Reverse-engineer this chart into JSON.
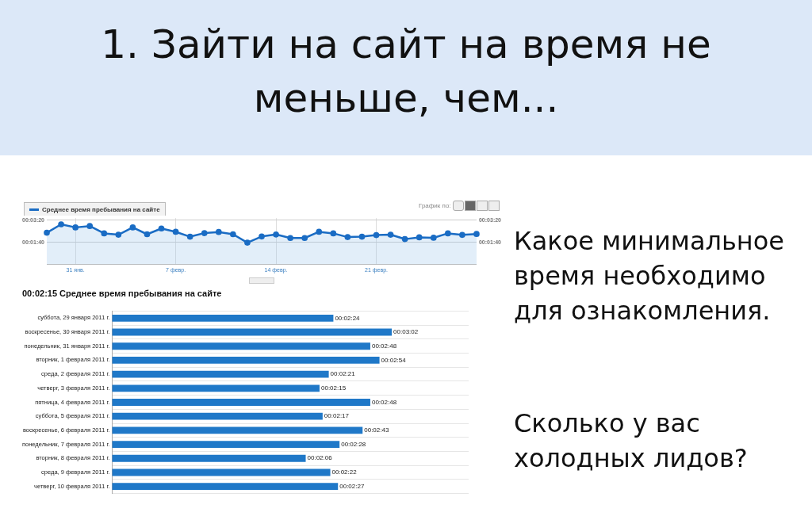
{
  "chart_data": [
    {
      "type": "area",
      "title": "1. Зайти на сайт на время не меньше, чем...",
      "x": [
        "2011-01-29",
        "2011-01-30",
        "2011-01-31",
        "2011-02-01",
        "2011-02-02",
        "2011-02-03",
        "2011-02-04",
        "2011-02-05",
        "2011-02-06",
        "2011-02-07",
        "2011-02-08",
        "2011-02-09",
        "2011-02-10",
        "2011-02-11",
        "2011-02-12",
        "2011-02-13",
        "2011-02-14",
        "2011-02-15",
        "2011-02-16",
        "2011-02-17",
        "2011-02-18",
        "2011-02-19",
        "2011-02-20",
        "2011-02-21",
        "2011-02-22",
        "2011-02-23",
        "2011-02-24",
        "2011-02-25",
        "2011-02-26",
        "2011-02-27",
        "2011-02-28"
      ],
      "series": [
        {
          "name": "Среднее время пребывания на сайте",
          "color": "#1a6cc4",
          "values": [
            144,
            182,
            168,
            174,
            141,
            135,
            168,
            137,
            163,
            148,
            126,
            142,
            147,
            137,
            99,
            127,
            136,
            120,
            120,
            148,
            141,
            124,
            126,
            133,
            135,
            115,
            123,
            121,
            141,
            134,
            138
          ]
        }
      ],
      "xlim": [
        "2011-01-29",
        "2011-02-28"
      ],
      "xticks": [
        {
          "value": "2011-01-31",
          "label": "31 янв."
        },
        {
          "value": "2011-02-07",
          "label": "7 февр."
        },
        {
          "value": "2011-02-14",
          "label": "14 февр."
        },
        {
          "value": "2011-02-21",
          "label": "21 февр."
        }
      ],
      "ylim": [
        0,
        210
      ],
      "yticks": [
        {
          "value": 100,
          "label": "00:01:40"
        },
        {
          "value": 200,
          "label": "00:03:20"
        }
      ],
      "y2lim": [
        0,
        210
      ],
      "y2ticks": [
        {
          "value": 100,
          "label": "00:01:40"
        },
        {
          "value": 200,
          "label": "00:03:20"
        }
      ],
      "grid": true,
      "marker": "circle",
      "legend": "top left",
      "annotations": [
        "График по:"
      ]
    },
    {
      "type": "bar",
      "orientation": "horizontal",
      "title": "00:02:15 Среднее время пребывания на сайте",
      "categories": [
        "суббота, 29 января 2011 г.",
        "воскресенье, 30 января 2011 г.",
        "понедельник, 31 января 2011 г.",
        "вторник, 1 февраля 2011 г.",
        "среда, 2 февраля 2011 г.",
        "четверг, 3 февраля 2011 г.",
        "пятница, 4 февраля 2011 г.",
        "суббота, 5 февраля 2011 г.",
        "воскресенье, 6 февраля 2011 г.",
        "понедельник, 7 февраля 2011 г.",
        "вторник, 8 февраля 2011 г.",
        "среда, 9 февраля 2011 г.",
        "четверг, 10 февраля 2011 г."
      ],
      "values": [
        144,
        182,
        168,
        174,
        141,
        135,
        168,
        137,
        163,
        148,
        126,
        142,
        147
      ],
      "value_labels": [
        "00:02:24",
        "00:03:02",
        "00:02:48",
        "00:02:54",
        "00:02:21",
        "00:02:15",
        "00:02:48",
        "00:02:17",
        "00:02:43",
        "00:02:28",
        "00:02:06",
        "00:02:22",
        "00:02:27"
      ],
      "color": "#1f78c8",
      "xlim": [
        0,
        232
      ],
      "grid": "y",
      "tick_labels": "y"
    },
    {
      "type": "other",
      "annotations": [
        "Какое минимальное время необходимо для ознакомления.",
        "Сколько у вас холодных лидов?"
      ]
    }
  ]
}
